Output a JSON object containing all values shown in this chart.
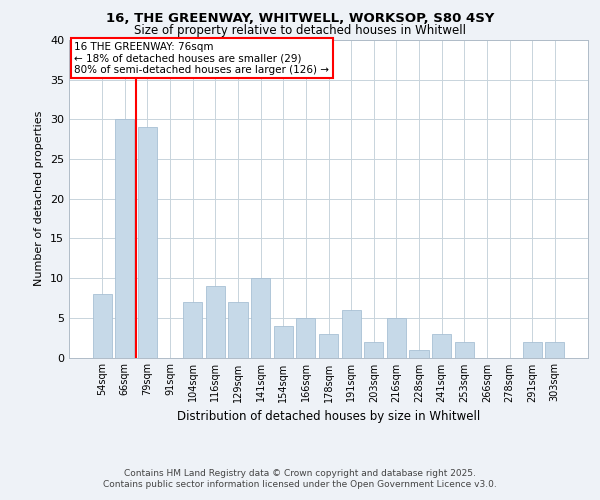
{
  "title1": "16, THE GREENWAY, WHITWELL, WORKSOP, S80 4SY",
  "title2": "Size of property relative to detached houses in Whitwell",
  "xlabel": "Distribution of detached houses by size in Whitwell",
  "ylabel": "Number of detached properties",
  "categories": [
    "54sqm",
    "66sqm",
    "79sqm",
    "91sqm",
    "104sqm",
    "116sqm",
    "129sqm",
    "141sqm",
    "154sqm",
    "166sqm",
    "178sqm",
    "191sqm",
    "203sqm",
    "216sqm",
    "228sqm",
    "241sqm",
    "253sqm",
    "266sqm",
    "278sqm",
    "291sqm",
    "303sqm"
  ],
  "values": [
    8,
    30,
    29,
    0,
    7,
    9,
    7,
    10,
    4,
    5,
    3,
    6,
    2,
    5,
    1,
    3,
    2,
    0,
    0,
    2,
    2
  ],
  "bar_color": "#c6d9e8",
  "bar_edge_color": "#a8c0d4",
  "red_line_x": 2,
  "annotation_line1": "16 THE GREENWAY: 76sqm",
  "annotation_line2": "← 18% of detached houses are smaller (29)",
  "annotation_line3": "80% of semi-detached houses are larger (126) →",
  "ylim": [
    0,
    40
  ],
  "yticks": [
    0,
    5,
    10,
    15,
    20,
    25,
    30,
    35,
    40
  ],
  "footer1": "Contains HM Land Registry data © Crown copyright and database right 2025.",
  "footer2": "Contains public sector information licensed under the Open Government Licence v3.0.",
  "background_color": "#eef2f7",
  "plot_bg_color": "#ffffff",
  "grid_color": "#c8d4dc"
}
